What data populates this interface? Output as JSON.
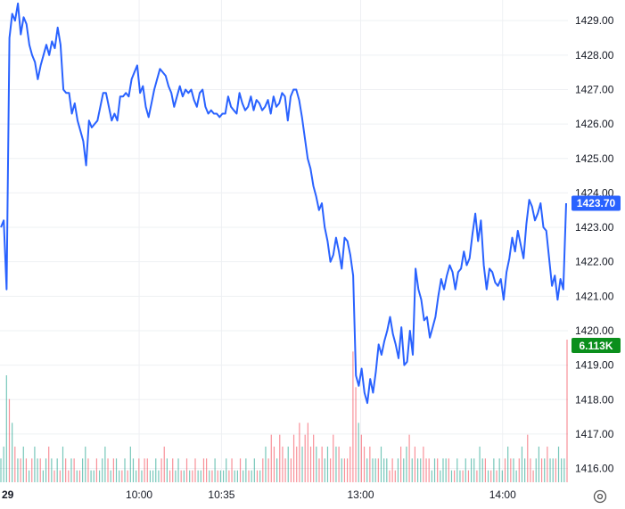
{
  "chart_data": {
    "type": "line",
    "title": "",
    "xlabel": "",
    "ylabel": "",
    "ylim": [
      1415.6,
      1429.6
    ],
    "y_ticks": [
      "1429.00",
      "1428.00",
      "1427.00",
      "1426.00",
      "1425.00",
      "1424.00",
      "1423.00",
      "1422.00",
      "1421.00",
      "1420.00",
      "1419.00",
      "1418.00",
      "1417.00",
      "1416.00"
    ],
    "x_ticks": [
      "29",
      "10:00",
      "10:35",
      "13:00",
      "14:00"
    ],
    "x_tick_pos": [
      0.0,
      0.245,
      0.39,
      0.635,
      0.885
    ],
    "grid": true,
    "line_color": "#2962ff",
    "last_price_label": "1423.70",
    "last_price_color": "#2962ff",
    "volume_label": "6.113K",
    "volume_label_color": "#0b8f1c",
    "up_color": "#089981",
    "down_color": "#f23645",
    "settings_icon": "gear-icon",
    "series": [
      {
        "values": [
          1423.0,
          1423.2,
          1421.2,
          1428.5,
          1429.2,
          1429.0,
          1429.5,
          1428.6,
          1429.1,
          1428.9,
          1428.3,
          1428.0,
          1427.8,
          1427.3,
          1427.7,
          1428.0,
          1428.3,
          1428.0,
          1428.4,
          1428.2,
          1428.8,
          1428.3,
          1427.0,
          1426.9,
          1426.9,
          1426.3,
          1426.6,
          1426.1,
          1425.8,
          1425.5,
          1424.8,
          1426.1,
          1425.9,
          1426.0,
          1426.1,
          1426.5,
          1426.9,
          1426.9,
          1426.5,
          1426.1,
          1426.3,
          1426.1,
          1426.8,
          1426.8,
          1426.9,
          1426.8,
          1427.3,
          1427.5,
          1427.7,
          1426.9,
          1427.1,
          1426.5,
          1426.2,
          1426.6,
          1427.0,
          1427.3,
          1427.6,
          1427.5,
          1427.4,
          1427.1,
          1426.9,
          1426.5,
          1426.8,
          1427.1,
          1426.8,
          1427.0,
          1426.9,
          1427.0,
          1426.7,
          1426.5,
          1426.9,
          1427.0,
          1426.5,
          1426.3,
          1426.4,
          1426.3,
          1426.3,
          1426.2,
          1426.3,
          1426.3,
          1426.8,
          1426.5,
          1426.4,
          1426.3,
          1426.9,
          1426.6,
          1426.4,
          1426.5,
          1426.8,
          1426.4,
          1426.7,
          1426.6,
          1426.4,
          1426.5,
          1426.7,
          1426.3,
          1426.8,
          1426.5,
          1426.6,
          1426.9,
          1426.8,
          1426.1,
          1426.8,
          1427.0,
          1427.0,
          1426.7,
          1426.2,
          1425.6,
          1425.0,
          1424.7,
          1424.2,
          1423.9,
          1423.5,
          1423.7,
          1423.0,
          1422.6,
          1422.0,
          1422.2,
          1422.7,
          1422.3,
          1421.8,
          1422.7,
          1422.6,
          1422.2,
          1421.6,
          1418.7,
          1418.4,
          1418.9,
          1418.2,
          1417.9,
          1418.6,
          1418.2,
          1418.8,
          1419.6,
          1419.3,
          1419.7,
          1420.0,
          1420.4,
          1419.9,
          1419.6,
          1419.2,
          1420.1,
          1419.0,
          1419.1,
          1420.0,
          1419.3,
          1421.8,
          1421.2,
          1420.9,
          1420.3,
          1420.4,
          1419.8,
          1420.1,
          1420.4,
          1421.0,
          1421.5,
          1421.2,
          1421.6,
          1421.9,
          1421.7,
          1421.2,
          1421.7,
          1421.8,
          1422.3,
          1421.9,
          1422.1,
          1422.8,
          1423.4,
          1422.6,
          1423.2,
          1421.9,
          1421.2,
          1421.8,
          1421.7,
          1421.4,
          1421.3,
          1421.5,
          1420.9,
          1421.7,
          1422.1,
          1422.7,
          1422.3,
          1422.9,
          1422.5,
          1422.1,
          1423.1,
          1423.8,
          1423.6,
          1423.2,
          1423.4,
          1423.7,
          1423.0,
          1422.9,
          1422.1,
          1421.3,
          1421.6,
          1420.9,
          1421.5,
          1421.2,
          1423.7
        ]
      }
    ],
    "volume": [
      2,
      3,
      9,
      7,
      5,
      3,
      2,
      2,
      3,
      2,
      1,
      2,
      3,
      2,
      2,
      1,
      2,
      3,
      2,
      1,
      2,
      1,
      3,
      2,
      1,
      2,
      2,
      1,
      1,
      2,
      3,
      2,
      1,
      1,
      2,
      1,
      2,
      3,
      2,
      1,
      2,
      2,
      1,
      1,
      2,
      1,
      3,
      2,
      1,
      2,
      1,
      2,
      2,
      1,
      1,
      2,
      1,
      2,
      3,
      2,
      1,
      2,
      1,
      2,
      1,
      1,
      2,
      1,
      1,
      2,
      1,
      1,
      2,
      2,
      1,
      1,
      2,
      1,
      1,
      1,
      2,
      1,
      2,
      1,
      1,
      2,
      1,
      2,
      1,
      1,
      2,
      1,
      1,
      2,
      3,
      2,
      4,
      3,
      2,
      4,
      3,
      2,
      3,
      2,
      4,
      3,
      5,
      3,
      4,
      5,
      3,
      4,
      3,
      2,
      3,
      2,
      3,
      2,
      4,
      3,
      3,
      2,
      2,
      2,
      3,
      11,
      8,
      5,
      4,
      3,
      2,
      3,
      2,
      2,
      2,
      3,
      2,
      2,
      1,
      2,
      1,
      2,
      3,
      2,
      3,
      4,
      2,
      3,
      2,
      2,
      3,
      2,
      2,
      1,
      2,
      2,
      1,
      2,
      2,
      2,
      1,
      1,
      2,
      1,
      1,
      2,
      1,
      2,
      2,
      1,
      3,
      2,
      2,
      1,
      1,
      2,
      1,
      2,
      1,
      2,
      3,
      2,
      2,
      1,
      2,
      3,
      2,
      4,
      2,
      1,
      2,
      3,
      2,
      2,
      3,
      2,
      2,
      2,
      3,
      2,
      2,
      12
    ],
    "volume_up": [
      1,
      1,
      1,
      0,
      1,
      0,
      1,
      0,
      1,
      0,
      1,
      0,
      1,
      1,
      0,
      1,
      1,
      0,
      1,
      0,
      1,
      0,
      1,
      0,
      0,
      1,
      0,
      1,
      0,
      1,
      1,
      0,
      1,
      1,
      0,
      1,
      1,
      1,
      0,
      1,
      0,
      1,
      1,
      0,
      1,
      0,
      1,
      1,
      1,
      0,
      1,
      0,
      0,
      1,
      1,
      1,
      1,
      0,
      0,
      1,
      0,
      0,
      1,
      1,
      0,
      1,
      0,
      1,
      0,
      0,
      1,
      1,
      0,
      0,
      1,
      0,
      1,
      0,
      1,
      1,
      1,
      0,
      0,
      1,
      1,
      0,
      1,
      1,
      0,
      1,
      1,
      0,
      1,
      0,
      1,
      0,
      0,
      0,
      1,
      0,
      0,
      0,
      1,
      0,
      0,
      0,
      0,
      1,
      0,
      0,
      0,
      0,
      1,
      0,
      0,
      1,
      1,
      0,
      0,
      1,
      0,
      1,
      0,
      0,
      0,
      0,
      0,
      1,
      0,
      0,
      1,
      0,
      1,
      1,
      0,
      1,
      1,
      1,
      0,
      0,
      0,
      1,
      0,
      1,
      1,
      0,
      1,
      0,
      1,
      1,
      0,
      0,
      0,
      1,
      1,
      0,
      1,
      1,
      1,
      0,
      1,
      0,
      1,
      1,
      0,
      1,
      0,
      1,
      1,
      0,
      1,
      1,
      0,
      1,
      0,
      1,
      0,
      1,
      1,
      0,
      1,
      0,
      1,
      1,
      0,
      1,
      1,
      0,
      0,
      0,
      1,
      1,
      0,
      1,
      0,
      1,
      1,
      0,
      1,
      1,
      1
    ]
  }
}
